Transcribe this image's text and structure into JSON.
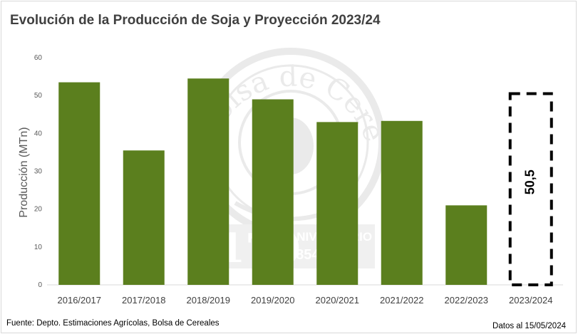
{
  "chart_data": {
    "type": "bar",
    "title": "Evolución de la Producción de Soja y Proyección 2023/24",
    "ylabel": "Producción (MTn)",
    "xlabel": "",
    "ylim": [
      0,
      60
    ],
    "yticks": [
      0,
      10,
      20,
      30,
      40,
      50,
      60
    ],
    "grid": false,
    "categories": [
      "2016/2017",
      "2017/2018",
      "2018/2019",
      "2019/2020",
      "2020/2021",
      "2021/2022",
      "2022/2023",
      "2023/2024"
    ],
    "values": [
      53.5,
      35.5,
      54.5,
      49,
      43,
      43.3,
      21,
      50.5
    ],
    "projected_index": 7,
    "projected_label": "50,5",
    "colors": {
      "bar": "#5b7f1e",
      "projection_border": "#000000"
    }
  },
  "watermark": {
    "text_top": "Bolsa de Cereales",
    "number": "170",
    "word": "ANIVERSARIO",
    "years": "1854-2024"
  },
  "footer": {
    "source": "Fuente: Depto. Estimaciones Agrícolas, Bolsa de Cereales",
    "date": "Datos al 15/05/2024"
  }
}
